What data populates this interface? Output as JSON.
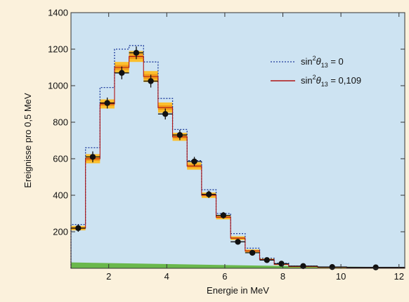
{
  "colors": {
    "page_background": "#fbf1dc",
    "plot_background": "#cde3f2",
    "no_oscillation_line": "#1f3c9c",
    "oscillation_line": "#b01515",
    "band_outer": "#fbbf2e",
    "band_inner": "#f29b1a",
    "data_points": "#111111",
    "background_spectrum": "#5fb23a"
  },
  "chart_data": {
    "type": "histogram",
    "xlabel": "Energie in MeV",
    "ylabel": "Ereignisse pro 0,5 MeV",
    "xlim": [
      0.7,
      12.2
    ],
    "ylim": [
      0,
      1400
    ],
    "xticks": [
      2,
      4,
      6,
      8,
      10,
      12
    ],
    "yticks": [
      200,
      400,
      600,
      800,
      1000,
      1200,
      1400
    ],
    "grid": false,
    "legend_position": "top-right",
    "legend": [
      {
        "label_main": "sin",
        "label_sup": "2",
        "label_theta": "θ",
        "label_sub": "13",
        "label_rest": " = 0",
        "style": "dotted"
      },
      {
        "label_main": "sin",
        "label_sup": "2",
        "label_theta": "θ",
        "label_sub": "13",
        "label_rest": " = 0,109",
        "style": "solid"
      }
    ],
    "bin_edges": [
      0.7,
      1.2,
      1.7,
      2.2,
      2.7,
      3.2,
      3.7,
      4.2,
      4.7,
      5.2,
      5.7,
      6.2,
      6.7,
      7.2,
      7.7,
      8.2,
      9.2,
      10.2,
      12.2
    ],
    "series": [
      {
        "values": [
          240,
          660,
          990,
          1200,
          1220,
          1130,
          930,
          760,
          590,
          430,
          300,
          190,
          110,
          55,
          28,
          12,
          7,
          4
        ]
      },
      {
        "values": [
          220,
          600,
          900,
          1100,
          1160,
          1050,
          880,
          720,
          560,
          400,
          280,
          165,
          95,
          48,
          22,
          10,
          6,
          3
        ]
      }
    ],
    "band_half_width": [
      12,
      25,
      25,
      30,
      30,
      30,
      28,
      22,
      20,
      15,
      12,
      10,
      8,
      5,
      4,
      2,
      2,
      1
    ],
    "data_points": [
      {
        "x": 0.95,
        "y": 220,
        "err": 20
      },
      {
        "x": 1.45,
        "y": 610,
        "err": 30
      },
      {
        "x": 1.95,
        "y": 905,
        "err": 30
      },
      {
        "x": 2.45,
        "y": 1070,
        "err": 35
      },
      {
        "x": 2.95,
        "y": 1180,
        "err": 35
      },
      {
        "x": 3.45,
        "y": 1025,
        "err": 35
      },
      {
        "x": 3.95,
        "y": 845,
        "err": 30
      },
      {
        "x": 4.45,
        "y": 730,
        "err": 28
      },
      {
        "x": 4.95,
        "y": 585,
        "err": 25
      },
      {
        "x": 5.45,
        "y": 405,
        "err": 20
      },
      {
        "x": 5.95,
        "y": 290,
        "err": 18
      },
      {
        "x": 6.45,
        "y": 145,
        "err": 12
      },
      {
        "x": 6.95,
        "y": 85,
        "err": 10
      },
      {
        "x": 7.45,
        "y": 45,
        "err": 8
      },
      {
        "x": 7.95,
        "y": 25,
        "err": 5
      },
      {
        "x": 8.7,
        "y": 12,
        "err": 3
      },
      {
        "x": 9.7,
        "y": 7,
        "err": 2
      },
      {
        "x": 11.2,
        "y": 5,
        "err": 2
      }
    ],
    "background_spectrum": {
      "x": [
        0.7,
        3,
        6,
        9,
        12.2
      ],
      "y": [
        32,
        26,
        18,
        10,
        6
      ]
    }
  }
}
